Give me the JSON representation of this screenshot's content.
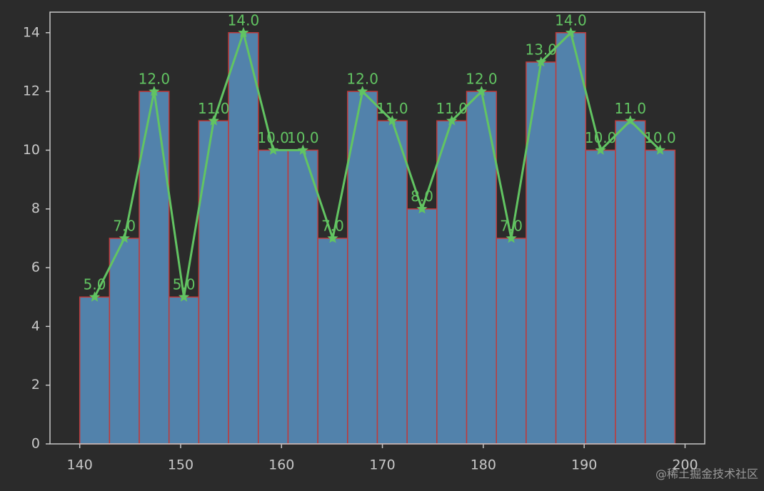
{
  "chart_data": {
    "type": "histogram",
    "bins": [
      140,
      142.95,
      145.9,
      148.85,
      151.8,
      154.75,
      157.7,
      160.65,
      163.6,
      166.55,
      169.5,
      172.45,
      175.4,
      178.35,
      181.3,
      184.25,
      187.2,
      190.15,
      193.1,
      196.05,
      199
    ],
    "values": [
      5,
      7,
      12,
      5,
      11,
      14,
      10,
      10,
      7,
      12,
      11,
      8,
      11,
      12,
      7,
      13,
      14,
      10,
      11,
      10
    ],
    "value_labels": [
      "5.0",
      "7.0",
      "12.0",
      "5.0",
      "11.0",
      "14.0",
      "10.0",
      "10.0",
      "7.0",
      "12.0",
      "11.0",
      "8.0",
      "11.0",
      "12.0",
      "7.0",
      "13.0",
      "14.0",
      "10.0",
      "11.0",
      "10.0"
    ],
    "color": "#5282ab",
    "edge_color": "#c03a3a",
    "line_color": "#62c462",
    "xlim": [
      137.05,
      201.95
    ],
    "ylim": [
      0,
      14.7
    ],
    "xticks": [
      140,
      150,
      160,
      170,
      180,
      190,
      200
    ],
    "yticks": [
      0,
      2,
      4,
      6,
      8,
      10,
      12,
      14
    ],
    "watermark": "@稀土掘金技术社区"
  }
}
